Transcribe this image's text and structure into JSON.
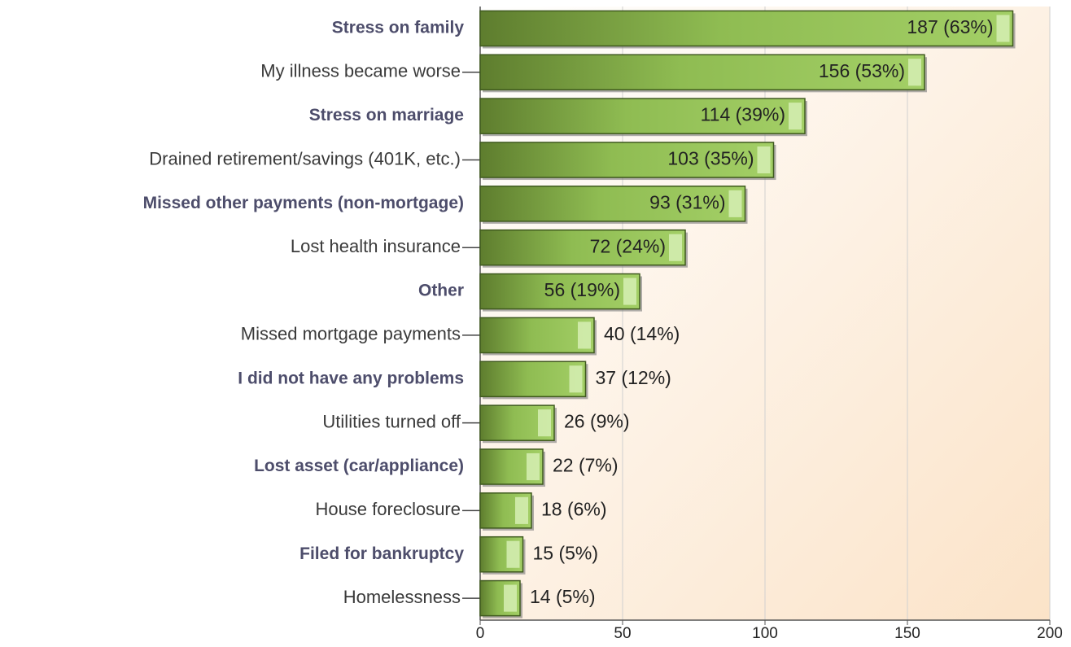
{
  "chart_data": {
    "type": "bar",
    "orientation": "horizontal",
    "categories": [
      "Stress on family",
      "My illness became worse",
      "Stress on marriage",
      "Drained retirement/savings (401K, etc.)",
      "Missed other payments (non-mortgage)",
      "Lost health insurance",
      "Other",
      "Missed mortgage payments",
      "I did not have any problems",
      "Utilities turned off",
      "Lost asset (car/appliance)",
      "House foreclosure",
      "Filed for bankruptcy",
      "Homelessness"
    ],
    "values": [
      187,
      156,
      114,
      103,
      93,
      72,
      56,
      40,
      37,
      26,
      22,
      18,
      15,
      14
    ],
    "value_labels": [
      "187 (63%)",
      "156 (53%)",
      "114 (39%)",
      "103 (35%)",
      "93 (31%)",
      "72 (24%)",
      "56 (19%)",
      "40 (14%)",
      "37 (12%)",
      "26 (9%)",
      "22 (7%)",
      "18 (6%)",
      "15 (5%)",
      "14 (5%)"
    ],
    "color": "#9cc85e",
    "xlim": [
      0,
      200
    ],
    "xticks": [
      0,
      50,
      100,
      150,
      200
    ],
    "grid": true
  }
}
